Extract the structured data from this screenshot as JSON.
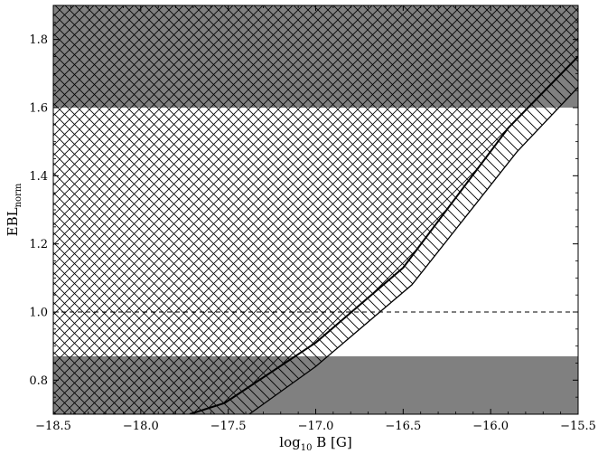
{
  "chart_data": {
    "type": "area",
    "xlabel": {
      "main": "log",
      "sub": "10",
      "rest": " B [G]"
    },
    "ylabel": {
      "main": "EBL",
      "sub": "norm"
    },
    "xlim": [
      -18.5,
      -15.5
    ],
    "ylim": [
      0.7,
      1.9
    ],
    "x_ticks": [
      -18.5,
      -18.0,
      -17.5,
      -17.0,
      -16.5,
      -16.0,
      -15.5
    ],
    "x_tick_labels": [
      "−18.5",
      "−18.0",
      "−17.5",
      "−17.0",
      "−16.5",
      "−16.0",
      "−15.5"
    ],
    "y_ticks": [
      0.8,
      1.0,
      1.2,
      1.4,
      1.6,
      1.8
    ],
    "y_tick_labels": [
      "0.8",
      "1.0",
      "1.2",
      "1.4",
      "1.6",
      "1.8"
    ],
    "x_minor_step": 0.1,
    "y_minor_step": 0.05,
    "grid": false,
    "excluded_bands": [
      {
        "y_from": 0.7,
        "y_to": 0.87,
        "color": "#808080"
      },
      {
        "y_from": 1.6,
        "y_to": 1.9,
        "color": "#808080"
      }
    ],
    "reference_line": {
      "y": 1.0,
      "style": "dashed"
    },
    "boundary_inner": {
      "x": [
        -17.72,
        -17.52,
        -17.0,
        -16.5,
        -15.9,
        -15.5
      ],
      "y": [
        0.7,
        0.733,
        0.91,
        1.13,
        1.54,
        1.75
      ]
    },
    "boundary_outer": {
      "x": [
        -17.38,
        -17.0,
        -16.45,
        -15.85,
        -15.5
      ],
      "y": [
        0.7,
        0.84,
        1.08,
        1.47,
        1.66
      ]
    }
  }
}
